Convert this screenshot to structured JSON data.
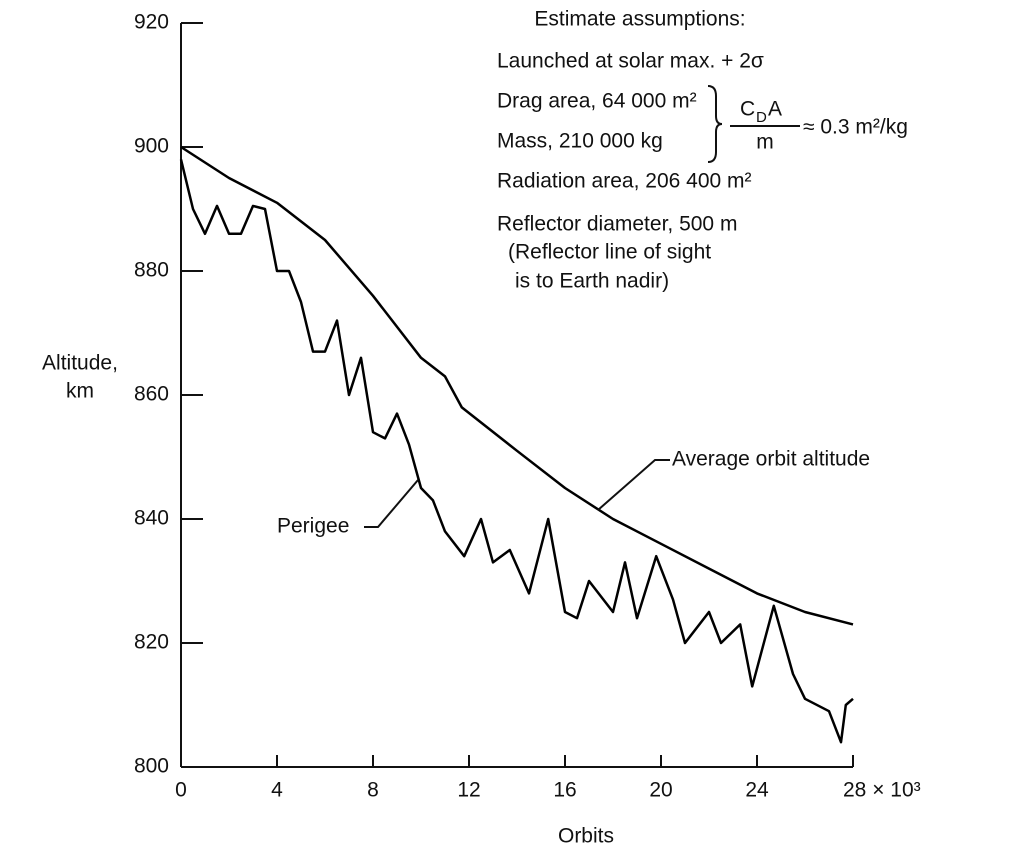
{
  "chart_data": {
    "type": "line",
    "x_label": "Orbits",
    "y_label": [
      "Altitude,",
      "km"
    ],
    "xlim": [
      0,
      28
    ],
    "ylim": [
      800,
      920
    ],
    "xticks": [
      0,
      4,
      8,
      12,
      16,
      20,
      24,
      {
        "value": 28,
        "label": "28 × 10³"
      }
    ],
    "yticks": [
      800,
      820,
      840,
      860,
      880,
      900,
      920
    ],
    "grid": false,
    "series": [
      {
        "name": "Average orbit altitude",
        "color": "#000000",
        "x": [
          0,
          2,
          4,
          6,
          8,
          10,
          11,
          11.7,
          14,
          16,
          18,
          20,
          22,
          24,
          26,
          28
        ],
        "values": [
          900,
          895,
          891,
          885,
          876,
          866,
          863,
          858,
          851,
          845,
          840,
          836,
          832,
          828,
          825,
          823
        ]
      },
      {
        "name": "Perigee",
        "color": "#000000",
        "x": [
          0,
          0.5,
          1,
          1.5,
          2,
          2.5,
          3,
          3.5,
          4,
          4.5,
          5,
          5.5,
          6,
          6.5,
          7,
          7.5,
          8,
          8.5,
          9,
          9.5,
          10,
          10.5,
          11,
          11.8,
          12.5,
          13,
          13.7,
          14.5,
          15.3,
          16,
          16.5,
          17,
          18,
          18.5,
          19,
          19.8,
          20.5,
          21,
          22,
          22.5,
          23.3,
          23.8,
          24.7,
          25.5,
          26,
          27,
          27.5,
          27.7,
          28
        ],
        "values": [
          898,
          890,
          886,
          890.5,
          886,
          886,
          890.5,
          890,
          880,
          880,
          875,
          867,
          867,
          872,
          860,
          866,
          854,
          853,
          857,
          852,
          845,
          843,
          838,
          834,
          840,
          833,
          835,
          828,
          840,
          825,
          824,
          830,
          825,
          833,
          824,
          834,
          827,
          820,
          825,
          820,
          823,
          813,
          826,
          815,
          811,
          809,
          804,
          810,
          811
        ]
      }
    ],
    "annotations": {
      "heading": "Estimate assumptions:",
      "lines": [
        "Launched at solar max. + 2σ",
        "Drag area, 64 000 m²",
        "Mass, 210 000 kg",
        "Radiation area, 206 400 m²",
        "Reflector diameter, 500 m",
        "(Reflector line of sight",
        "is to Earth nadir)"
      ],
      "fraction_numerator": [
        "C",
        "D",
        "A"
      ],
      "fraction_denominator": "m",
      "fraction_result": "≈ 0.3 m²/kg"
    }
  }
}
